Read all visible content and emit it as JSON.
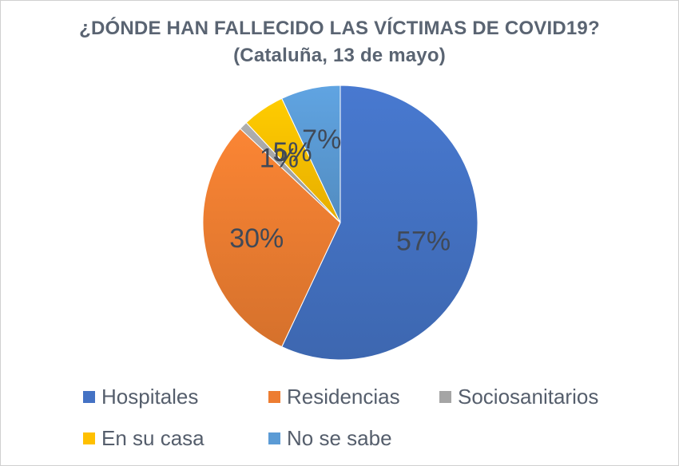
{
  "title_line1": "¿DÓNDE HAN FALLECIDO LAS VÍCTIMAS DE COVID19?",
  "title_line2": "(Cataluña, 13 de mayo)",
  "chart_data": {
    "type": "pie",
    "title": "¿DÓNDE HAN FALLECIDO LAS VÍCTIMAS DE COVID19? (Cataluña, 13 de mayo)",
    "unit": "%",
    "legend_position": "bottom",
    "slices": [
      {
        "label": "Hospitales",
        "value": 57,
        "display": "57%",
        "color": "#4472c4"
      },
      {
        "label": "Residencias",
        "value": 30,
        "display": "30%",
        "color": "#ed7d31"
      },
      {
        "label": "Sociosanitarios",
        "value": 1,
        "display": "1%",
        "color": "#a5a5a5"
      },
      {
        "label": "En su casa",
        "value": 5,
        "display": "5%",
        "color": "#ffc000"
      },
      {
        "label": "No se sabe",
        "value": 7,
        "display": "7%",
        "color": "#5b9bd5"
      }
    ]
  }
}
